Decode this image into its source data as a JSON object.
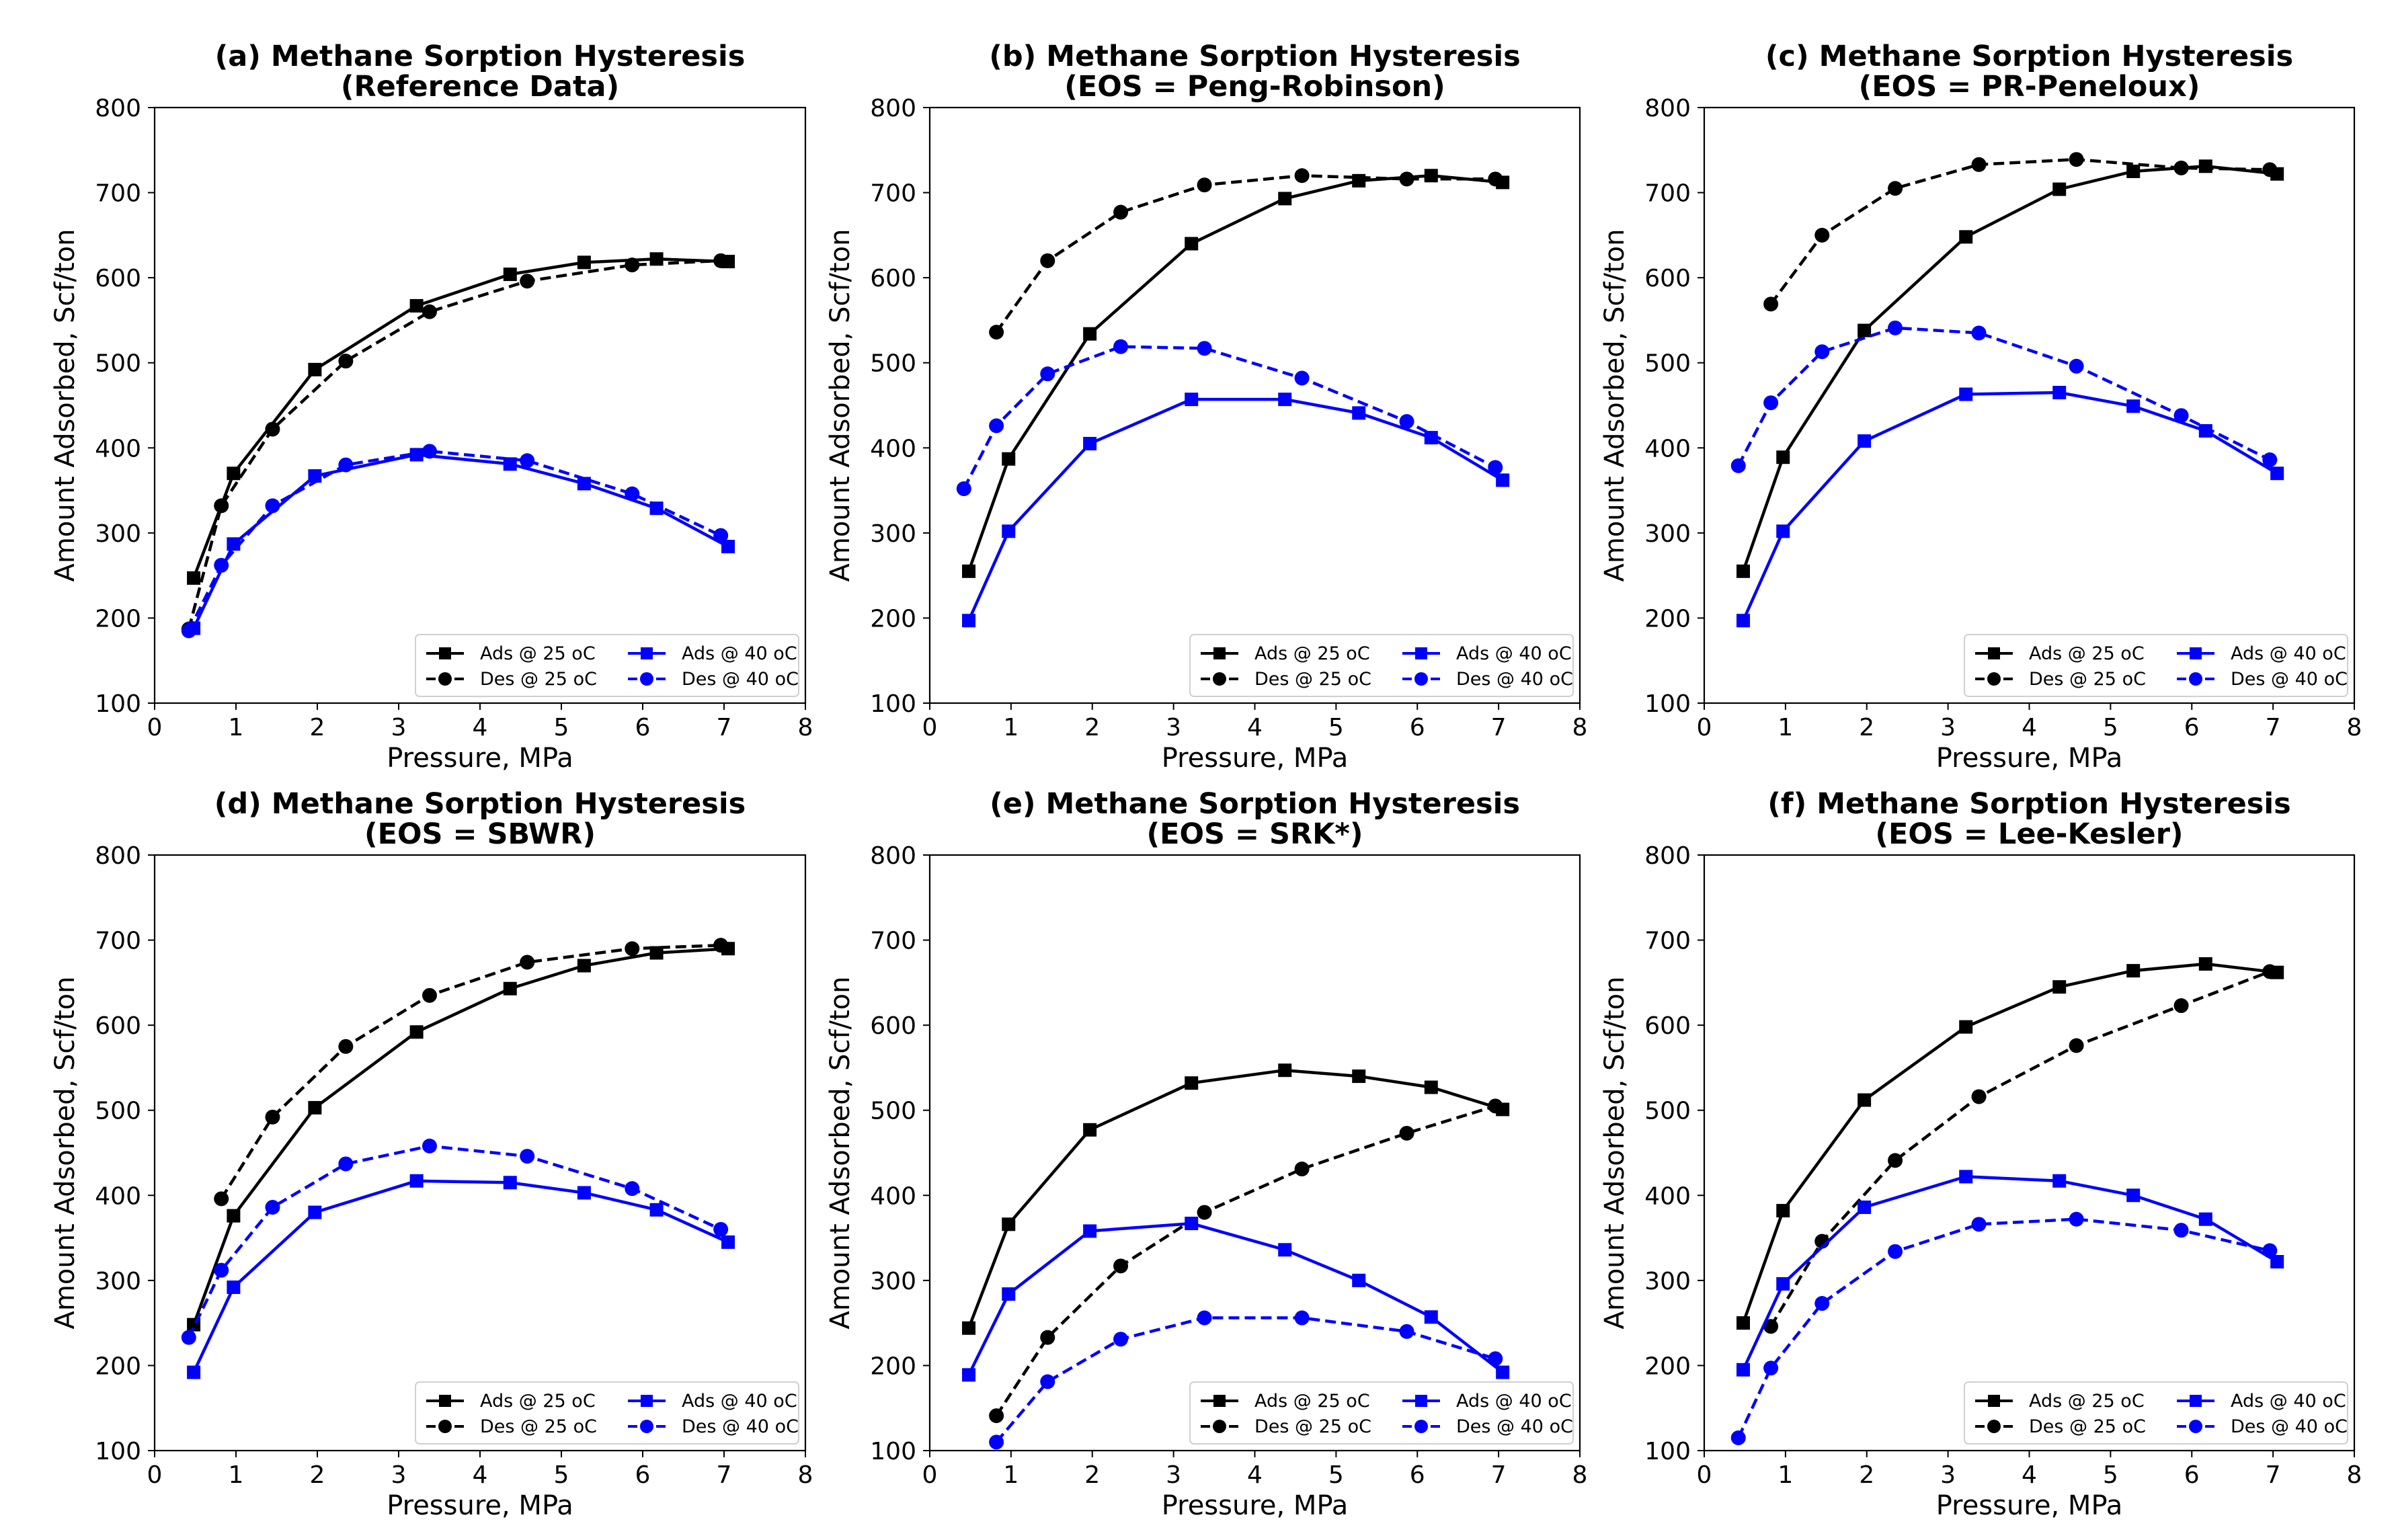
{
  "chart_data": [
    {
      "type": "line",
      "title": "(a) Methane Sorption Hysteresis",
      "subtitle": "(Reference Data)",
      "xlabel": "Pressure, MPa",
      "ylabel": "Amount Adsorbed, Scf/ton",
      "xlim": [
        0,
        8
      ],
      "ylim": [
        100,
        800
      ],
      "xticks": [
        0,
        1,
        2,
        3,
        4,
        5,
        6,
        7,
        8
      ],
      "yticks": [
        100,
        200,
        300,
        400,
        500,
        600,
        700,
        800
      ],
      "legend": "lower-right",
      "series": [
        {
          "name": "Ads @ 25 oC",
          "color": "#000000",
          "marker": "square",
          "dash": "solid",
          "x": [
            0.48,
            0.97,
            1.97,
            3.22,
            4.37,
            5.28,
            6.17,
            7.05
          ],
          "y": [
            247,
            370,
            492,
            567,
            604,
            618,
            622,
            619
          ]
        },
        {
          "name": "Des @ 25 oC",
          "color": "#000000",
          "marker": "circle",
          "dash": "dashed",
          "x": [
            0.42,
            0.82,
            1.45,
            2.35,
            3.38,
            4.58,
            5.87,
            6.96
          ],
          "y": [
            187,
            332,
            422,
            502,
            560,
            596,
            615,
            620
          ]
        },
        {
          "name": "Ads @ 40 oC",
          "color": "#0000ff",
          "marker": "square",
          "dash": "solid",
          "x": [
            0.48,
            0.97,
            1.97,
            3.22,
            4.37,
            5.28,
            6.17,
            7.05
          ],
          "y": [
            188,
            287,
            367,
            392,
            381,
            358,
            329,
            284
          ]
        },
        {
          "name": "Des @ 40 oC",
          "color": "#0000ff",
          "marker": "circle",
          "dash": "dashed",
          "x": [
            0.42,
            0.82,
            1.45,
            2.35,
            3.38,
            4.58,
            5.87,
            6.96
          ],
          "y": [
            185,
            262,
            332,
            380,
            396,
            385,
            346,
            297
          ]
        }
      ]
    },
    {
      "type": "line",
      "title": "(b) Methane Sorption Hysteresis",
      "subtitle": "(EOS = Peng-Robinson)",
      "xlabel": "Pressure, MPa",
      "ylabel": "Amount Adsorbed, Scf/ton",
      "xlim": [
        0,
        8
      ],
      "ylim": [
        100,
        800
      ],
      "xticks": [
        0,
        1,
        2,
        3,
        4,
        5,
        6,
        7,
        8
      ],
      "yticks": [
        100,
        200,
        300,
        400,
        500,
        600,
        700,
        800
      ],
      "legend": "lower-right",
      "series": [
        {
          "name": "Ads @ 25 oC",
          "color": "#000000",
          "marker": "square",
          "dash": "solid",
          "x": [
            0.48,
            0.97,
            1.97,
            3.22,
            4.37,
            5.28,
            6.17,
            7.05
          ],
          "y": [
            255,
            387,
            534,
            640,
            693,
            714,
            720,
            712
          ]
        },
        {
          "name": "Des @ 25 oC",
          "color": "#000000",
          "marker": "circle",
          "dash": "dashed",
          "x": [
            0.82,
            1.45,
            2.35,
            3.38,
            4.58,
            5.87,
            6.96
          ],
          "y": [
            536,
            620,
            677,
            709,
            720,
            716,
            716
          ]
        },
        {
          "name": "Ads @ 40 oC",
          "color": "#0000ff",
          "marker": "square",
          "dash": "solid",
          "x": [
            0.48,
            0.97,
            1.97,
            3.22,
            4.37,
            5.28,
            6.17,
            7.05
          ],
          "y": [
            197,
            302,
            405,
            457,
            457,
            441,
            412,
            362
          ]
        },
        {
          "name": "Des @ 40 oC",
          "color": "#0000ff",
          "marker": "circle",
          "dash": "dashed",
          "x": [
            0.42,
            0.82,
            1.45,
            2.35,
            3.38,
            4.58,
            5.87,
            6.96
          ],
          "y": [
            352,
            426,
            487,
            519,
            517,
            482,
            431,
            377
          ]
        }
      ]
    },
    {
      "type": "line",
      "title": "(c) Methane Sorption Hysteresis",
      "subtitle": "(EOS = PR-Peneloux)",
      "xlabel": "Pressure, MPa",
      "ylabel": "Amount Adsorbed, Scf/ton",
      "xlim": [
        0,
        8
      ],
      "ylim": [
        100,
        800
      ],
      "xticks": [
        0,
        1,
        2,
        3,
        4,
        5,
        6,
        7,
        8
      ],
      "yticks": [
        100,
        200,
        300,
        400,
        500,
        600,
        700,
        800
      ],
      "legend": "lower-right",
      "series": [
        {
          "name": "Ads @ 25 oC",
          "color": "#000000",
          "marker": "square",
          "dash": "solid",
          "x": [
            0.48,
            0.97,
            1.97,
            3.22,
            4.37,
            5.28,
            6.17,
            7.05
          ],
          "y": [
            255,
            389,
            538,
            648,
            704,
            725,
            731,
            722
          ]
        },
        {
          "name": "Des @ 25 oC",
          "color": "#000000",
          "marker": "circle",
          "dash": "dashed",
          "x": [
            0.82,
            1.45,
            2.35,
            3.38,
            4.58,
            5.87,
            6.96
          ],
          "y": [
            569,
            650,
            705,
            733,
            739,
            729,
            727
          ]
        },
        {
          "name": "Ads @ 40 oC",
          "color": "#0000ff",
          "marker": "square",
          "dash": "solid",
          "x": [
            0.48,
            0.97,
            1.97,
            3.22,
            4.37,
            5.28,
            6.17,
            7.05
          ],
          "y": [
            197,
            302,
            408,
            463,
            465,
            449,
            420,
            370
          ]
        },
        {
          "name": "Des @ 40 oC",
          "color": "#0000ff",
          "marker": "circle",
          "dash": "dashed",
          "x": [
            0.42,
            0.82,
            1.45,
            2.35,
            3.38,
            4.58,
            5.87,
            6.96
          ],
          "y": [
            379,
            453,
            513,
            541,
            535,
            496,
            438,
            386
          ]
        }
      ]
    },
    {
      "type": "line",
      "title": "(d) Methane Sorption Hysteresis",
      "subtitle": "(EOS = SBWR)",
      "xlabel": "Pressure, MPa",
      "ylabel": "Amount Adsorbed, Scf/ton",
      "xlim": [
        0,
        8
      ],
      "ylim": [
        100,
        800
      ],
      "xticks": [
        0,
        1,
        2,
        3,
        4,
        5,
        6,
        7,
        8
      ],
      "yticks": [
        100,
        200,
        300,
        400,
        500,
        600,
        700,
        800
      ],
      "legend": "lower-right",
      "series": [
        {
          "name": "Ads @ 25 oC",
          "color": "#000000",
          "marker": "square",
          "dash": "solid",
          "x": [
            0.48,
            0.97,
            1.97,
            3.22,
            4.37,
            5.28,
            6.17,
            7.05
          ],
          "y": [
            248,
            376,
            503,
            592,
            643,
            670,
            685,
            690
          ]
        },
        {
          "name": "Des @ 25 oC",
          "color": "#000000",
          "marker": "circle",
          "dash": "dashed",
          "x": [
            0.82,
            1.45,
            2.35,
            3.38,
            4.58,
            5.87,
            6.96
          ],
          "y": [
            396,
            492,
            575,
            635,
            674,
            690,
            694
          ]
        },
        {
          "name": "Ads @ 40 oC",
          "color": "#0000ff",
          "marker": "square",
          "dash": "solid",
          "x": [
            0.48,
            0.97,
            1.97,
            3.22,
            4.37,
            5.28,
            6.17,
            7.05
          ],
          "y": [
            192,
            292,
            380,
            417,
            415,
            403,
            383,
            345
          ]
        },
        {
          "name": "Des @ 40 oC",
          "color": "#0000ff",
          "marker": "circle",
          "dash": "dashed",
          "x": [
            0.42,
            0.82,
            1.45,
            2.35,
            3.38,
            4.58,
            5.87,
            6.96
          ],
          "y": [
            233,
            312,
            386,
            437,
            458,
            446,
            408,
            360
          ]
        }
      ]
    },
    {
      "type": "line",
      "title": "(e) Methane Sorption Hysteresis",
      "subtitle": "(EOS = SRK*)",
      "xlabel": "Pressure, MPa",
      "ylabel": "Amount Adsorbed, Scf/ton",
      "xlim": [
        0,
        8
      ],
      "ylim": [
        100,
        800
      ],
      "xticks": [
        0,
        1,
        2,
        3,
        4,
        5,
        6,
        7,
        8
      ],
      "yticks": [
        100,
        200,
        300,
        400,
        500,
        600,
        700,
        800
      ],
      "legend": "lower-right",
      "series": [
        {
          "name": "Ads @ 25 oC",
          "color": "#000000",
          "marker": "square",
          "dash": "solid",
          "x": [
            0.48,
            0.97,
            1.97,
            3.22,
            4.37,
            5.28,
            6.17,
            7.05
          ],
          "y": [
            244,
            366,
            477,
            532,
            547,
            540,
            527,
            501
          ]
        },
        {
          "name": "Des @ 25 oC",
          "color": "#000000",
          "marker": "circle",
          "dash": "dashed",
          "x": [
            0.82,
            1.45,
            2.35,
            3.38,
            4.58,
            5.87,
            6.96
          ],
          "y": [
            141,
            233,
            317,
            380,
            431,
            473,
            505
          ]
        },
        {
          "name": "Ads @ 40 oC",
          "color": "#0000ff",
          "marker": "square",
          "dash": "solid",
          "x": [
            0.48,
            0.97,
            1.97,
            3.22,
            4.37,
            5.28,
            6.17,
            7.05
          ],
          "y": [
            189,
            284,
            358,
            367,
            336,
            300,
            257,
            192
          ]
        },
        {
          "name": "Des @ 40 oC",
          "color": "#0000ff",
          "marker": "circle",
          "dash": "dashed",
          "x": [
            0.82,
            1.45,
            2.35,
            3.38,
            4.58,
            5.87,
            6.96
          ],
          "y": [
            110,
            181,
            231,
            256,
            256,
            240,
            208
          ]
        }
      ]
    },
    {
      "type": "line",
      "title": "(f) Methane Sorption Hysteresis",
      "subtitle": "(EOS = Lee-Kesler)",
      "xlabel": "Pressure, MPa",
      "ylabel": "Amount Adsorbed, Scf/ton",
      "xlim": [
        0,
        8
      ],
      "ylim": [
        100,
        800
      ],
      "xticks": [
        0,
        1,
        2,
        3,
        4,
        5,
        6,
        7,
        8
      ],
      "yticks": [
        100,
        200,
        300,
        400,
        500,
        600,
        700,
        800
      ],
      "legend": "lower-right",
      "series": [
        {
          "name": "Ads @ 25 oC",
          "color": "#000000",
          "marker": "square",
          "dash": "solid",
          "x": [
            0.48,
            0.97,
            1.97,
            3.22,
            4.37,
            5.28,
            6.17,
            7.05
          ],
          "y": [
            250,
            382,
            512,
            598,
            645,
            664,
            672,
            662
          ]
        },
        {
          "name": "Des @ 25 oC",
          "color": "#000000",
          "marker": "circle",
          "dash": "dashed",
          "x": [
            0.82,
            1.45,
            2.35,
            3.38,
            4.58,
            5.87,
            6.96
          ],
          "y": [
            246,
            346,
            441,
            516,
            576,
            623,
            663
          ]
        },
        {
          "name": "Ads @ 40 oC",
          "color": "#0000ff",
          "marker": "square",
          "dash": "solid",
          "x": [
            0.48,
            0.97,
            1.97,
            3.22,
            4.37,
            5.28,
            6.17,
            7.05
          ],
          "y": [
            195,
            296,
            386,
            422,
            417,
            400,
            372,
            322
          ]
        },
        {
          "name": "Des @ 40 oC",
          "color": "#0000ff",
          "marker": "circle",
          "dash": "dashed",
          "x": [
            0.42,
            0.82,
            1.45,
            2.35,
            3.38,
            4.58,
            5.87,
            6.96
          ],
          "y": [
            115,
            197,
            273,
            334,
            366,
            372,
            359,
            335
          ]
        }
      ]
    }
  ]
}
